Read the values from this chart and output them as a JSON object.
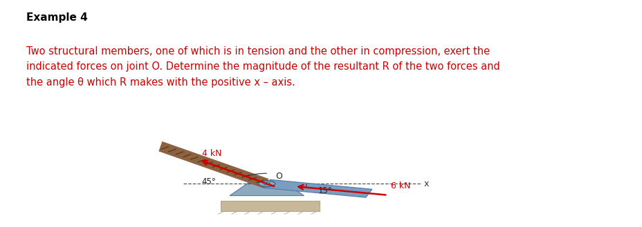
{
  "title": "Example 4",
  "title_fontsize": 11,
  "title_bold": true,
  "title_color": "#000000",
  "body_text": "Two structural members, one of which is in tension and the other in compression, exert the\nindicated forces on joint O. Determine the magnitude of the resultant R of the two forces and\nthe angle θ which R makes with the positive x – axis.",
  "body_text_color": "#cc0000",
  "body_fontsize": 10.5,
  "background_color": "#ffffff",
  "diagram": {
    "force1_label": "4 kN",
    "force1_color": "#cc0000",
    "force2_label": "6 kN",
    "force2_color": "#cc0000",
    "angle1_label": "45°",
    "angle2_label": "15°",
    "joint_label": "O",
    "x_label": "x",
    "member1_color": "#8B6340",
    "beam_color": "#7a9ec0",
    "support_color": "#8da8bf",
    "ground_color": "#c8b89a",
    "dashed_line_color": "#555555"
  }
}
